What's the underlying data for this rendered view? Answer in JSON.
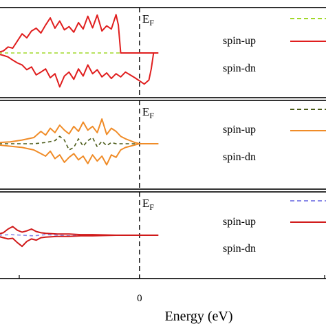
{
  "chart_data": [
    {
      "type": "line",
      "fermi_label": "E",
      "fermi_sub": "F",
      "fermi_x": 0,
      "series": [
        {
          "name": "",
          "color": "#a0d828",
          "dashed": true,
          "x": [
            -6.0,
            0.8
          ],
          "y": [
            0,
            0
          ]
        },
        {
          "name": "spin-up",
          "color": "#e01e1e",
          "dashed": false,
          "x": [
            -6.0,
            -5.8,
            -5.6,
            -5.4,
            -5.2,
            -5.0,
            -4.8,
            -4.6,
            -4.4,
            -4.2,
            -4.0,
            -3.8,
            -3.6,
            -3.4,
            -3.2,
            -3.0,
            -2.8,
            -2.6,
            -2.4,
            -2.2,
            -2.0,
            -1.8,
            -1.6,
            -1.4,
            -1.2,
            -1.0,
            -0.9,
            -0.8,
            -0.6,
            -0.4,
            -0.2,
            0.0,
            0.4,
            0.8
          ],
          "y": [
            0.02,
            0.05,
            0.15,
            0.12,
            0.3,
            0.48,
            0.38,
            0.55,
            0.62,
            0.5,
            0.7,
            0.88,
            0.62,
            0.8,
            0.58,
            0.66,
            0.52,
            0.76,
            0.6,
            0.92,
            0.63,
            0.95,
            0.55,
            0.68,
            0.6,
            0.96,
            0.7,
            0.0,
            0.0,
            0.0,
            0.0,
            0.0,
            0.0,
            0.0
          ]
        },
        {
          "name": "spin-dn",
          "color": "#e01e1e",
          "dashed": false,
          "x": [
            -6.0,
            -5.8,
            -5.6,
            -5.4,
            -5.2,
            -5.0,
            -4.8,
            -4.6,
            -4.4,
            -4.2,
            -4.0,
            -3.8,
            -3.6,
            -3.4,
            -3.2,
            -3.0,
            -2.8,
            -2.6,
            -2.4,
            -2.2,
            -2.0,
            -1.8,
            -1.6,
            -1.4,
            -1.2,
            -1.0,
            -0.8,
            -0.6,
            -0.4,
            -0.2,
            0.0,
            0.2,
            0.4,
            0.5,
            0.6,
            0.8
          ],
          "y": [
            -0.03,
            -0.06,
            -0.1,
            -0.18,
            -0.25,
            -0.3,
            -0.42,
            -0.35,
            -0.55,
            -0.48,
            -0.4,
            -0.62,
            -0.52,
            -0.85,
            -0.58,
            -0.48,
            -0.66,
            -0.4,
            -0.58,
            -0.3,
            -0.52,
            -0.42,
            -0.6,
            -0.5,
            -0.64,
            -0.52,
            -0.6,
            -0.48,
            -0.55,
            -0.62,
            -0.7,
            -0.78,
            -0.68,
            -0.4,
            0.0,
            0.0
          ]
        }
      ],
      "labels": [
        "spin-up",
        "spin-dn"
      ]
    },
    {
      "type": "line",
      "fermi_label": "E",
      "fermi_sub": "F",
      "fermi_x": 0,
      "series": [
        {
          "name": "",
          "color": "#4a5a18",
          "dashed": true,
          "x": [
            -6.0,
            -5.5,
            -5.0,
            -4.5,
            -4.0,
            -3.6,
            -3.4,
            -3.2,
            -3.0,
            -2.8,
            -2.6,
            -2.4,
            -2.2,
            -2.0,
            -1.8,
            -1.6,
            -1.4,
            -1.2,
            -1.0,
            -0.8,
            0.0,
            0.8
          ],
          "y": [
            0.0,
            0.0,
            0.0,
            0.0,
            0.02,
            0.05,
            0.12,
            0.06,
            -0.1,
            -0.06,
            0.08,
            -0.04,
            0.05,
            0.1,
            -0.05,
            0.04,
            -0.03,
            0.02,
            0.0,
            0.0,
            0.0,
            0.0
          ]
        },
        {
          "name": "spin-up",
          "color": "#f08c28",
          "dashed": false,
          "x": [
            -6.0,
            -5.5,
            -5.0,
            -4.5,
            -4.2,
            -4.0,
            -3.8,
            -3.6,
            -3.4,
            -3.2,
            -3.0,
            -2.8,
            -2.6,
            -2.4,
            -2.2,
            -2.0,
            -1.8,
            -1.6,
            -1.4,
            -1.2,
            -1.0,
            -0.8,
            -0.6,
            -0.4,
            -0.2,
            0.0,
            0.4,
            0.8
          ],
          "y": [
            0.02,
            0.03,
            0.06,
            0.1,
            0.2,
            0.14,
            0.25,
            0.18,
            0.3,
            0.22,
            0.16,
            0.28,
            0.2,
            0.35,
            0.22,
            0.28,
            0.18,
            0.4,
            0.15,
            0.25,
            0.2,
            0.12,
            0.08,
            0.05,
            0.02,
            0.0,
            0.0,
            0.0
          ]
        },
        {
          "name": "spin-dn",
          "color": "#f08c28",
          "dashed": false,
          "x": [
            -6.0,
            -5.5,
            -5.0,
            -4.5,
            -4.2,
            -4.0,
            -3.8,
            -3.6,
            -3.4,
            -3.2,
            -3.0,
            -2.8,
            -2.6,
            -2.4,
            -2.2,
            -2.0,
            -1.8,
            -1.6,
            -1.4,
            -1.2,
            -1.0,
            -0.8,
            -0.6,
            -0.4,
            -0.2,
            0.0,
            0.4,
            0.8
          ],
          "y": [
            -0.02,
            -0.04,
            -0.06,
            -0.1,
            -0.16,
            -0.2,
            -0.12,
            -0.24,
            -0.18,
            -0.3,
            -0.22,
            -0.16,
            -0.26,
            -0.2,
            -0.32,
            -0.18,
            -0.28,
            -0.2,
            -0.34,
            -0.18,
            -0.22,
            -0.1,
            -0.06,
            -0.04,
            -0.02,
            0.0,
            0.0,
            0.0
          ]
        }
      ],
      "labels": [
        "spin-up",
        "spin-dn"
      ]
    },
    {
      "type": "line",
      "fermi_label": "E",
      "fermi_sub": "F",
      "fermi_x": 0,
      "xlabel": "Energy (eV)",
      "xticks": [
        0
      ],
      "series": [
        {
          "name": "",
          "color": "#8a8ae8",
          "dashed": true,
          "x": [
            -6.0,
            -5.5,
            -5.0,
            -4.5,
            -4.0,
            -3.5,
            -3.0,
            -2.5,
            -2.0,
            -1.0,
            0.0,
            0.8
          ],
          "y": [
            0.0,
            0.01,
            0.0,
            -0.01,
            0.01,
            0.0,
            -0.01,
            0.0,
            0.0,
            0.0,
            0.0,
            0.0
          ]
        },
        {
          "name": "spin-up",
          "color": "#d01a1a",
          "dashed": false,
          "x": [
            -6.0,
            -5.8,
            -5.6,
            -5.4,
            -5.2,
            -5.0,
            -4.8,
            -4.6,
            -4.4,
            -4.2,
            -4.0,
            -3.5,
            -3.0,
            -2.5,
            -2.0,
            -1.0,
            0.0,
            0.8
          ],
          "y": [
            0.02,
            0.04,
            0.1,
            0.14,
            0.08,
            0.05,
            0.07,
            0.1,
            0.06,
            0.04,
            0.03,
            0.02,
            0.02,
            0.01,
            0.01,
            0.0,
            0.0,
            0.0
          ]
        },
        {
          "name": "spin-dn",
          "color": "#d01a1a",
          "dashed": false,
          "x": [
            -6.0,
            -5.8,
            -5.6,
            -5.4,
            -5.2,
            -5.0,
            -4.8,
            -4.6,
            -4.4,
            -4.2,
            -4.0,
            -3.5,
            -3.0,
            -2.5,
            -2.0,
            -1.0,
            0.0,
            0.8
          ],
          "y": [
            -0.02,
            -0.04,
            -0.06,
            -0.05,
            -0.12,
            -0.18,
            -0.1,
            -0.06,
            -0.08,
            -0.04,
            -0.03,
            -0.02,
            -0.02,
            -0.01,
            -0.01,
            0.0,
            0.0,
            0.0
          ]
        }
      ],
      "labels": [
        "spin-up",
        "spin-dn"
      ]
    }
  ]
}
